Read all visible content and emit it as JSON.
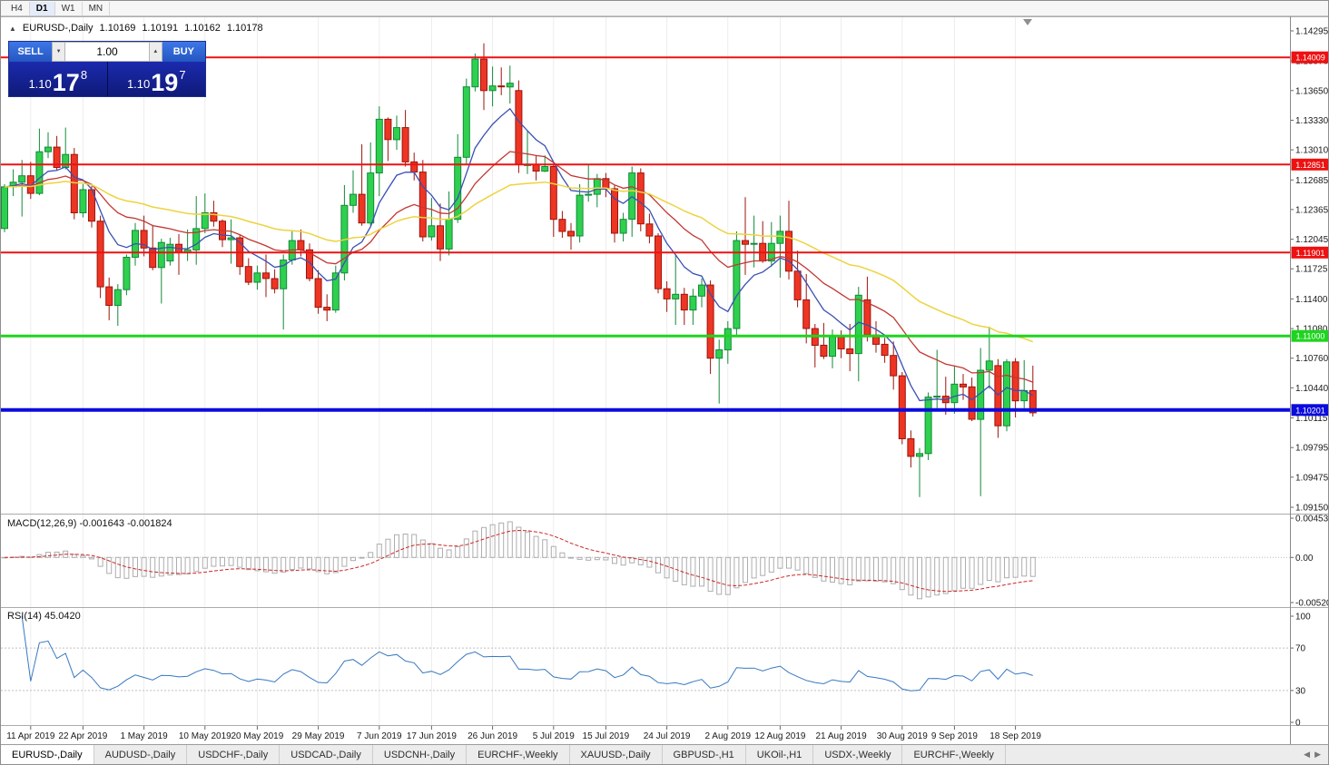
{
  "toolbar": {
    "timeframes": [
      {
        "label": "H4",
        "active": false
      },
      {
        "label": "D1",
        "active": true
      },
      {
        "label": "W1",
        "active": false
      },
      {
        "label": "MN",
        "active": false
      }
    ]
  },
  "chart_header": {
    "symbol": "EURUSD-,Daily",
    "open": "1.10169",
    "high": "1.10191",
    "low": "1.10162",
    "close": "1.10178"
  },
  "trade_panel": {
    "sell_label": "SELL",
    "buy_label": "BUY",
    "volume": "1.00",
    "bid": {
      "prefix": "1.10",
      "big": "17",
      "sup": "8"
    },
    "ask": {
      "prefix": "1.10",
      "big": "19",
      "sup": "7"
    }
  },
  "price_axis": {
    "ticks": [
      "1.14295",
      "1.13970",
      "1.13650",
      "1.13330",
      "1.13010",
      "1.12685",
      "1.12365",
      "1.12045",
      "1.11725",
      "1.11400",
      "1.11080",
      "1.10760",
      "1.10440",
      "1.10115",
      "1.09795",
      "1.09475",
      "1.09150"
    ]
  },
  "hlines": [
    {
      "label": "1.14009",
      "price": 1.14009,
      "color": "#ee1111",
      "width": 2
    },
    {
      "label": "1.12851",
      "price": 1.12851,
      "color": "#ee1111",
      "width": 2
    },
    {
      "label": "1.11901",
      "price": 1.11901,
      "color": "#ee1111",
      "width": 2
    },
    {
      "label": "1.11000",
      "price": 1.11,
      "color": "#1fd41f",
      "width": 3
    },
    {
      "label": "1.10201",
      "price": 1.10201,
      "color": "#0b0bde",
      "width": 4
    }
  ],
  "macd_panel": {
    "label": "MACD(12,26,9) -0.001643 -0.001824",
    "axis_ticks": [
      "0.004536",
      "0.00",
      "-0.005205"
    ],
    "histogram_color": "#adadad",
    "signal_color": "#cf2626"
  },
  "rsi_panel": {
    "label": "RSI(14) 45.0420",
    "axis_ticks": [
      "100",
      "70",
      "30",
      "0"
    ],
    "levels": [
      70,
      30
    ],
    "line_color": "#3878c0"
  },
  "date_axis": {
    "labels": [
      {
        "text": "11 Apr 2019",
        "index": 3
      },
      {
        "text": "22 Apr 2019",
        "index": 9
      },
      {
        "text": "1 May 2019",
        "index": 16
      },
      {
        "text": "10 May 2019",
        "index": 23
      },
      {
        "text": "20 May 2019",
        "index": 29
      },
      {
        "text": "29 May 2019",
        "index": 36
      },
      {
        "text": "7 Jun 2019",
        "index": 43
      },
      {
        "text": "17 Jun 2019",
        "index": 49
      },
      {
        "text": "26 Jun 2019",
        "index": 56
      },
      {
        "text": "5 Jul 2019",
        "index": 63
      },
      {
        "text": "15 Jul 2019",
        "index": 69
      },
      {
        "text": "24 Jul 2019",
        "index": 76
      },
      {
        "text": "2 Aug 2019",
        "index": 83
      },
      {
        "text": "12 Aug 2019",
        "index": 89
      },
      {
        "text": "21 Aug 2019",
        "index": 96
      },
      {
        "text": "30 Aug 2019",
        "index": 103
      },
      {
        "text": "9 Sep 2019",
        "index": 109
      },
      {
        "text": "18 Sep 2019",
        "index": 116
      }
    ]
  },
  "tabs": {
    "active_index": 0,
    "items": [
      "EURUSD-,Daily",
      "AUDUSD-,Daily",
      "USDCHF-,Daily",
      "USDCAD-,Daily",
      "USDCNH-,Daily",
      "EURCHF-,Weekly",
      "XAUUSD-,Daily",
      "GBPUSD-,H1",
      "UKOil-,H1",
      "USDX-,Weekly",
      "EURCHF-,Weekly"
    ]
  },
  "chart_data": {
    "type": "candlestick",
    "title": "EURUSD-,Daily",
    "price_range": [
      1.0915,
      1.14295
    ],
    "up_color": "#2fd04f",
    "up_border": "#128a38",
    "down_color": "#ee3524",
    "down_border": "#9c140b",
    "moving_averages": [
      {
        "period": 8,
        "color": "#3a50b4",
        "width": 1.3
      },
      {
        "period": 20,
        "color": "#c23732",
        "width": 1.3
      },
      {
        "period": 45,
        "color": "#edd33f",
        "width": 1.5
      }
    ],
    "indicators": {
      "macd": {
        "fast": 12,
        "slow": 26,
        "signal": 9
      },
      "rsi": {
        "period": 14
      }
    },
    "ohlc": [
      [
        1.1216,
        1.1264,
        1.1212,
        1.1261
      ],
      [
        1.1261,
        1.128,
        1.1251,
        1.1266
      ],
      [
        1.1266,
        1.129,
        1.1229,
        1.1273
      ],
      [
        1.1273,
        1.1288,
        1.1248,
        1.1254
      ],
      [
        1.1254,
        1.1324,
        1.1252,
        1.1299
      ],
      [
        1.1299,
        1.132,
        1.1292,
        1.1304
      ],
      [
        1.1304,
        1.1316,
        1.1279,
        1.1282
      ],
      [
        1.1282,
        1.1325,
        1.128,
        1.1296
      ],
      [
        1.1296,
        1.1303,
        1.1226,
        1.1233
      ],
      [
        1.1233,
        1.1264,
        1.1228,
        1.1258
      ],
      [
        1.1258,
        1.1262,
        1.1217,
        1.1224
      ],
      [
        1.1224,
        1.123,
        1.1141,
        1.1153
      ],
      [
        1.1153,
        1.1163,
        1.1117,
        1.1133
      ],
      [
        1.1133,
        1.1156,
        1.1111,
        1.115
      ],
      [
        1.115,
        1.1188,
        1.1144,
        1.1185
      ],
      [
        1.1185,
        1.1222,
        1.1176,
        1.1214
      ],
      [
        1.1214,
        1.123,
        1.1186,
        1.1195
      ],
      [
        1.1195,
        1.122,
        1.1171,
        1.1174
      ],
      [
        1.1174,
        1.1205,
        1.1135,
        1.1201
      ],
      [
        1.1181,
        1.1206,
        1.1176,
        1.1199
      ],
      [
        1.1199,
        1.121,
        1.1166,
        1.119
      ],
      [
        1.119,
        1.1215,
        1.1181,
        1.1193
      ],
      [
        1.1193,
        1.1251,
        1.1177,
        1.1216
      ],
      [
        1.1216,
        1.1254,
        1.1211,
        1.1233
      ],
      [
        1.1233,
        1.1246,
        1.1218,
        1.1224
      ],
      [
        1.1224,
        1.1226,
        1.1196,
        1.1204
      ],
      [
        1.1204,
        1.1226,
        1.1178,
        1.1206
      ],
      [
        1.1206,
        1.1209,
        1.1166,
        1.1175
      ],
      [
        1.1175,
        1.1184,
        1.1155,
        1.1158
      ],
      [
        1.1158,
        1.1176,
        1.115,
        1.1168
      ],
      [
        1.1168,
        1.1188,
        1.1142,
        1.1162
      ],
      [
        1.1162,
        1.1172,
        1.1146,
        1.1151
      ],
      [
        1.1151,
        1.1188,
        1.1107,
        1.1182
      ],
      [
        1.1182,
        1.1213,
        1.1177,
        1.1203
      ],
      [
        1.1203,
        1.1215,
        1.1186,
        1.1193
      ],
      [
        1.1193,
        1.12,
        1.1159,
        1.1162
      ],
      [
        1.1162,
        1.1171,
        1.1124,
        1.1131
      ],
      [
        1.1131,
        1.1145,
        1.1116,
        1.1128
      ],
      [
        1.1128,
        1.1176,
        1.1125,
        1.1168
      ],
      [
        1.1168,
        1.1263,
        1.116,
        1.1241
      ],
      [
        1.1241,
        1.1279,
        1.1233,
        1.1253
      ],
      [
        1.1253,
        1.1307,
        1.1219,
        1.1222
      ],
      [
        1.1222,
        1.1309,
        1.1219,
        1.1276
      ],
      [
        1.1276,
        1.1348,
        1.1251,
        1.1334
      ],
      [
        1.1334,
        1.1336,
        1.1289,
        1.1312
      ],
      [
        1.1312,
        1.1338,
        1.1301,
        1.1325
      ],
      [
        1.1325,
        1.1344,
        1.1283,
        1.1288
      ],
      [
        1.1288,
        1.1298,
        1.1268,
        1.1277
      ],
      [
        1.1277,
        1.129,
        1.1202,
        1.1207
      ],
      [
        1.1207,
        1.1249,
        1.1203,
        1.1219
      ],
      [
        1.1219,
        1.1243,
        1.1181,
        1.1194
      ],
      [
        1.1194,
        1.1256,
        1.1187,
        1.1226
      ],
      [
        1.1226,
        1.1318,
        1.1222,
        1.1293
      ],
      [
        1.1293,
        1.1378,
        1.1285,
        1.1369
      ],
      [
        1.1369,
        1.1405,
        1.1364,
        1.1399
      ],
      [
        1.1399,
        1.1416,
        1.1344,
        1.1365
      ],
      [
        1.1365,
        1.1391,
        1.1348,
        1.137
      ],
      [
        1.137,
        1.139,
        1.136,
        1.1369
      ],
      [
        1.1369,
        1.1392,
        1.1351,
        1.1373
      ],
      [
        1.1365,
        1.1376,
        1.1276,
        1.1285
      ],
      [
        1.1285,
        1.1322,
        1.1275,
        1.1285
      ],
      [
        1.1285,
        1.1295,
        1.1268,
        1.1278
      ],
      [
        1.1278,
        1.1295,
        1.1277,
        1.1283
      ],
      [
        1.1283,
        1.1286,
        1.1207,
        1.1226
      ],
      [
        1.1226,
        1.1235,
        1.1206,
        1.1213
      ],
      [
        1.1213,
        1.1222,
        1.1193,
        1.1208
      ],
      [
        1.1208,
        1.1264,
        1.1201,
        1.1252
      ],
      [
        1.1252,
        1.1285,
        1.1245,
        1.1253
      ],
      [
        1.1253,
        1.1275,
        1.1239,
        1.127
      ],
      [
        1.127,
        1.1276,
        1.125,
        1.1259
      ],
      [
        1.1259,
        1.1263,
        1.1201,
        1.1211
      ],
      [
        1.1211,
        1.1233,
        1.1202,
        1.1226
      ],
      [
        1.1226,
        1.1283,
        1.1207,
        1.1276
      ],
      [
        1.1276,
        1.1281,
        1.1213,
        1.1221
      ],
      [
        1.1221,
        1.1232,
        1.12,
        1.1208
      ],
      [
        1.1208,
        1.1211,
        1.1146,
        1.1151
      ],
      [
        1.1151,
        1.1159,
        1.1126,
        1.114
      ],
      [
        1.114,
        1.1188,
        1.1112,
        1.1145
      ],
      [
        1.1145,
        1.1152,
        1.1112,
        1.1128
      ],
      [
        1.1128,
        1.1151,
        1.1112,
        1.1143
      ],
      [
        1.1143,
        1.1162,
        1.1131,
        1.1155
      ],
      [
        1.1155,
        1.116,
        1.1059,
        1.1076
      ],
      [
        1.1076,
        1.1096,
        1.1027,
        1.1085
      ],
      [
        1.1085,
        1.1116,
        1.107,
        1.1108
      ],
      [
        1.1108,
        1.1213,
        1.1101,
        1.1203
      ],
      [
        1.1203,
        1.125,
        1.1166,
        1.1199
      ],
      [
        1.1199,
        1.123,
        1.1174,
        1.12
      ],
      [
        1.12,
        1.1224,
        1.1179,
        1.1181
      ],
      [
        1.1181,
        1.1223,
        1.1175,
        1.12
      ],
      [
        1.12,
        1.123,
        1.1163,
        1.1213
      ],
      [
        1.1213,
        1.1246,
        1.1161,
        1.117
      ],
      [
        1.117,
        1.1192,
        1.1131,
        1.1139
      ],
      [
        1.1139,
        1.1167,
        1.1092,
        1.1108
      ],
      [
        1.1108,
        1.1113,
        1.1066,
        1.109
      ],
      [
        1.109,
        1.1114,
        1.1075,
        1.1078
      ],
      [
        1.1078,
        1.1107,
        1.1065,
        1.1099
      ],
      [
        1.1099,
        1.1106,
        1.1076,
        1.1086
      ],
      [
        1.1086,
        1.1113,
        1.1062,
        1.1081
      ],
      [
        1.1081,
        1.1153,
        1.1051,
        1.1144
      ],
      [
        1.1139,
        1.1164,
        1.1094,
        1.1101
      ],
      [
        1.1101,
        1.1116,
        1.1082,
        1.1091
      ],
      [
        1.1091,
        1.1098,
        1.1071,
        1.1079
      ],
      [
        1.1079,
        1.1094,
        1.1042,
        1.1057
      ],
      [
        1.1057,
        1.1061,
        1.0983,
        1.0989
      ],
      [
        1.0989,
        1.0998,
        1.0958,
        1.097
      ],
      [
        1.097,
        1.0979,
        1.0926,
        1.0973
      ],
      [
        1.0973,
        1.1039,
        1.0966,
        1.1034
      ],
      [
        1.1034,
        1.1085,
        1.1022,
        1.1035
      ],
      [
        1.1035,
        1.1056,
        1.1015,
        1.1028
      ],
      [
        1.1028,
        1.1067,
        1.1016,
        1.1048
      ],
      [
        1.1048,
        1.1059,
        1.1031,
        1.1045
      ],
      [
        1.1045,
        1.1055,
        1.1008,
        1.101
      ],
      [
        1.101,
        1.1087,
        1.0927,
        1.1063
      ],
      [
        1.1063,
        1.111,
        1.1043,
        1.1073
      ],
      [
        1.1068,
        1.1075,
        1.099,
        1.1003
      ],
      [
        1.1003,
        1.1075,
        1.0997,
        1.1072
      ],
      [
        1.1072,
        1.1076,
        1.1012,
        1.103
      ],
      [
        1.103,
        1.1074,
        1.1022,
        1.1041
      ],
      [
        1.1041,
        1.1068,
        1.1013,
        1.1017
      ]
    ]
  }
}
